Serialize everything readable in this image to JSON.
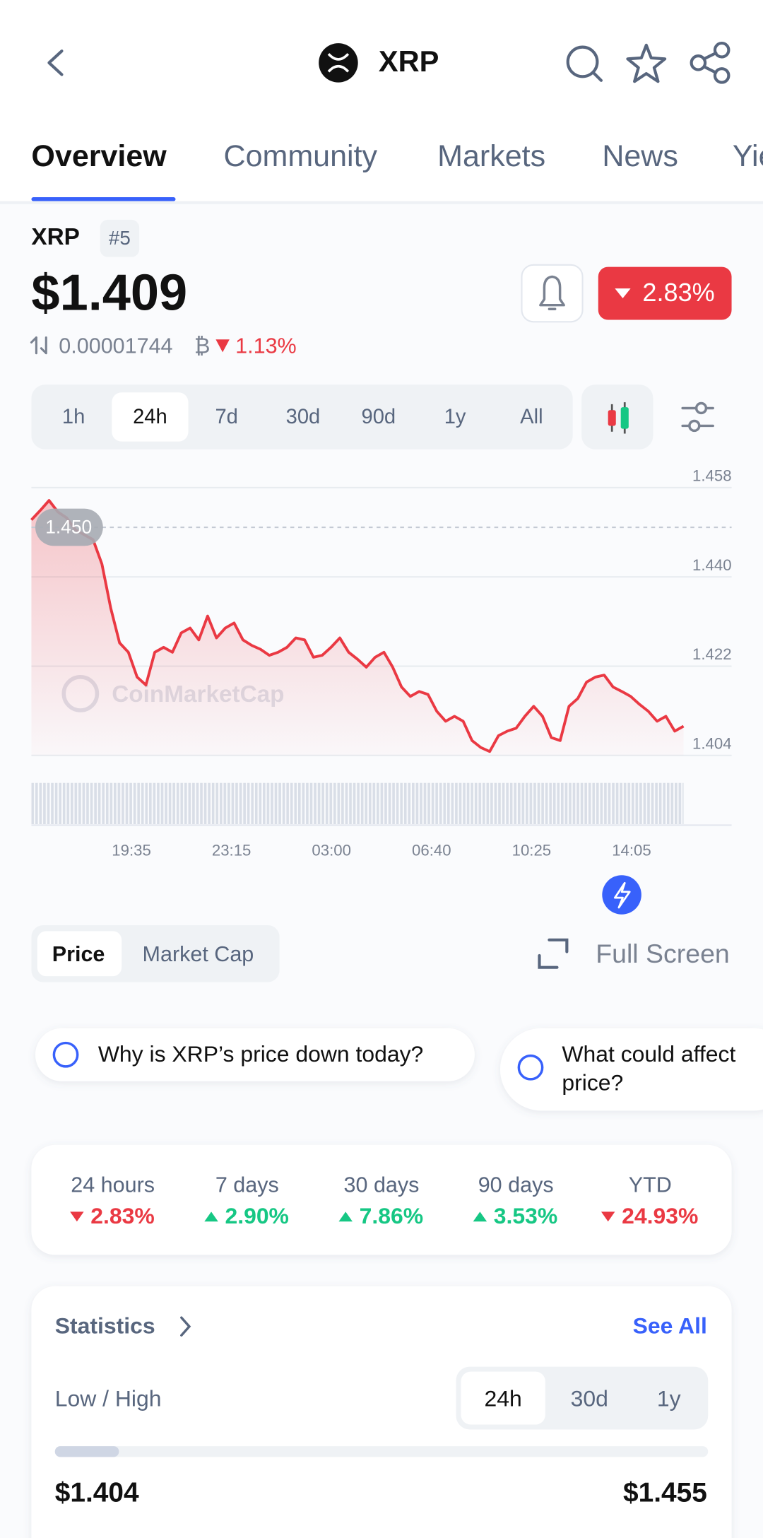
{
  "header": {
    "title": "XRP"
  },
  "tabs": [
    "Overview",
    "Community",
    "Markets",
    "News",
    "Yield"
  ],
  "coin": {
    "symbol": "XRP",
    "rank": "#5",
    "price": {
      "value": 1.409,
      "label": "$1.409"
    },
    "btc_price": "0.00001744",
    "btc_symbol": "₿",
    "btc_change": "1.13%",
    "change_24h": "2.83%"
  },
  "time_ranges": [
    "1h",
    "24h",
    "7d",
    "30d",
    "90d",
    "1y",
    "All"
  ],
  "price_chart": {
    "type": "line",
    "ylim": [
      1.404,
      1.458
    ],
    "yticks": [
      1.404,
      1.422,
      {
        "value": 1.44,
        "label": "1.440"
      },
      1.458
    ],
    "reference": {
      "value": 1.45,
      "label": "1.450"
    },
    "x_labels": [
      "19:35",
      "23:15",
      "03:00",
      "06:40",
      "10:25",
      "14:05"
    ],
    "watermark": "CoinMarketCap",
    "color": "#ea3943",
    "values": [
      1.4515,
      1.4534,
      1.4554,
      1.4531,
      1.4519,
      1.4495,
      1.4485,
      1.4475,
      1.4426,
      1.4337,
      1.4267,
      1.4248,
      1.4198,
      1.4182,
      1.4248,
      1.4258,
      1.4248,
      1.4287,
      1.4297,
      1.4273,
      1.4321,
      1.4277,
      1.4297,
      1.4307,
      1.4273,
      1.4262,
      1.4254,
      1.4242,
      1.4248,
      1.4258,
      1.4277,
      1.4273,
      1.4238,
      1.4242,
      1.4258,
      1.4277,
      1.4248,
      1.4234,
      1.4218,
      1.4238,
      1.4248,
      1.4218,
      1.4178,
      1.4159,
      1.4169,
      1.4163,
      1.4129,
      1.4109,
      1.4119,
      1.4109,
      1.407,
      1.4056,
      1.4048,
      1.408,
      1.4089,
      1.4095,
      1.4119,
      1.4139,
      1.4119,
      1.4076,
      1.407,
      1.4139,
      1.4155,
      1.4188,
      1.4198,
      1.4202,
      1.4178,
      1.4169,
      1.4159,
      1.4143,
      1.4129,
      1.4109,
      1.4119,
      1.4089,
      1.4099
    ]
  },
  "chart_toggle": [
    "Price",
    "Market Cap"
  ],
  "full_screen": "Full Screen",
  "ai_prompts": [
    [
      "Why is XRP’s price down today?"
    ],
    [
      "What could affect",
      "price?"
    ]
  ],
  "performance": [
    {
      "period": "24 hours",
      "change": "2.83%",
      "direction": "down"
    },
    {
      "period": "7 days",
      "change": "2.90%",
      "direction": "up"
    },
    {
      "period": "30 days",
      "change": "7.86%",
      "direction": "up"
    },
    {
      "period": "90 days",
      "change": "3.53%",
      "direction": "up"
    },
    {
      "period": "YTD",
      "change": "24.93%",
      "direction": "down"
    }
  ],
  "statistics": {
    "title": "Statistics",
    "see_all": "See All",
    "label": "Low / High",
    "ranges": [
      "24h",
      "30d",
      "1y"
    ],
    "low": {
      "value": 1.404,
      "label": "$1.404"
    },
    "high": {
      "value": 1.455,
      "label": "$1.455"
    }
  }
}
